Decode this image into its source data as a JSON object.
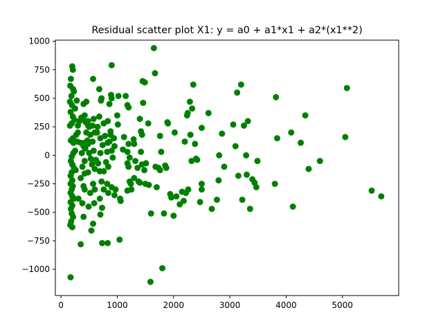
{
  "chart_data": {
    "type": "scatter",
    "title": "Residual scatter plot X1:  y = a0 + a1*x1 + a2*(x1**2)",
    "xlabel": "",
    "ylabel": "",
    "xlim": [
      -100,
      6000
    ],
    "ylim": [
      -1230,
      1010
    ],
    "xticks": [
      0,
      1000,
      2000,
      3000,
      4000,
      5000
    ],
    "yticks": [
      -1000,
      -750,
      -500,
      -250,
      0,
      250,
      500,
      750,
      1000
    ],
    "grid": false,
    "legend": "none",
    "marker_color": "#008000",
    "series": [
      {
        "points": [
          [
            200,
            780
          ],
          [
            210,
            750
          ],
          [
            175,
            670
          ],
          [
            165,
            610
          ],
          [
            215,
            580
          ],
          [
            230,
            560
          ],
          [
            185,
            520
          ],
          [
            160,
            470
          ],
          [
            195,
            440
          ],
          [
            250,
            410
          ],
          [
            280,
            480
          ],
          [
            170,
            380
          ],
          [
            210,
            340
          ],
          [
            240,
            310
          ],
          [
            190,
            280
          ],
          [
            160,
            260
          ],
          [
            300,
            260
          ],
          [
            330,
            300
          ],
          [
            360,
            330
          ],
          [
            390,
            320
          ],
          [
            300,
            200
          ],
          [
            270,
            180
          ],
          [
            210,
            150
          ],
          [
            175,
            130
          ],
          [
            220,
            110
          ],
          [
            290,
            120
          ],
          [
            350,
            110
          ],
          [
            400,
            80
          ],
          [
            250,
            40
          ],
          [
            220,
            20
          ],
          [
            190,
            -10
          ],
          [
            175,
            -50
          ],
          [
            200,
            -80
          ],
          [
            230,
            -110
          ],
          [
            260,
            -130
          ],
          [
            190,
            -150
          ],
          [
            170,
            -180
          ],
          [
            200,
            -220
          ],
          [
            170,
            -250
          ],
          [
            210,
            -270
          ],
          [
            190,
            -300
          ],
          [
            170,
            -330
          ],
          [
            200,
            -360
          ],
          [
            230,
            -380
          ],
          [
            170,
            -410
          ],
          [
            200,
            -440
          ],
          [
            175,
            -470
          ],
          [
            190,
            -510
          ],
          [
            215,
            -540
          ],
          [
            180,
            -580
          ],
          [
            165,
            -610
          ],
          [
            200,
            -630
          ],
          [
            170,
            -1070
          ],
          [
            350,
            -780
          ],
          [
            310,
            -380
          ],
          [
            380,
            -420
          ],
          [
            420,
            -300
          ],
          [
            400,
            -270
          ],
          [
            350,
            -200
          ],
          [
            420,
            -160
          ],
          [
            380,
            -100
          ],
          [
            420,
            -50
          ],
          [
            370,
            20
          ],
          [
            430,
            60
          ],
          [
            420,
            110
          ],
          [
            470,
            130
          ],
          [
            450,
            200
          ],
          [
            480,
            260
          ],
          [
            440,
            290
          ],
          [
            420,
            350
          ],
          [
            400,
            450
          ],
          [
            450,
            470
          ],
          [
            480,
            300
          ],
          [
            500,
            250
          ],
          [
            520,
            180
          ],
          [
            480,
            100
          ],
          [
            500,
            20
          ],
          [
            530,
            -30
          ],
          [
            550,
            -80
          ],
          [
            480,
            -150
          ],
          [
            520,
            -330
          ],
          [
            490,
            -450
          ],
          [
            400,
            -540
          ],
          [
            540,
            -660
          ],
          [
            570,
            -600
          ],
          [
            590,
            -420
          ],
          [
            600,
            -300
          ],
          [
            570,
            -250
          ],
          [
            600,
            -120
          ],
          [
            620,
            -40
          ],
          [
            580,
            40
          ],
          [
            560,
            120
          ],
          [
            600,
            200
          ],
          [
            560,
            260
          ],
          [
            580,
            320
          ],
          [
            570,
            670
          ],
          [
            680,
            580
          ],
          [
            720,
            500
          ],
          [
            710,
            480
          ],
          [
            680,
            340
          ],
          [
            650,
            250
          ],
          [
            640,
            200
          ],
          [
            700,
            150
          ],
          [
            740,
            90
          ],
          [
            700,
            20
          ],
          [
            660,
            -70
          ],
          [
            690,
            -140
          ],
          [
            720,
            -230
          ],
          [
            690,
            -380
          ],
          [
            730,
            -460
          ],
          [
            760,
            -300
          ],
          [
            700,
            -520
          ],
          [
            730,
            -770
          ],
          [
            830,
            -770
          ],
          [
            760,
            -140
          ],
          [
            800,
            -60
          ],
          [
            820,
            30
          ],
          [
            830,
            110
          ],
          [
            780,
            170
          ],
          [
            760,
            280
          ],
          [
            830,
            300
          ],
          [
            880,
            210
          ],
          [
            900,
            500
          ],
          [
            890,
            530
          ],
          [
            900,
            790
          ],
          [
            860,
            450
          ],
          [
            880,
            180
          ],
          [
            940,
            150
          ],
          [
            860,
            120
          ],
          [
            950,
            80
          ],
          [
            900,
            40
          ],
          [
            920,
            -20
          ],
          [
            840,
            -100
          ],
          [
            820,
            -250
          ],
          [
            840,
            -330
          ],
          [
            900,
            -280
          ],
          [
            950,
            -350
          ],
          [
            970,
            -300
          ],
          [
            1000,
            350
          ],
          [
            1010,
            270
          ],
          [
            1020,
            520
          ],
          [
            1050,
            -380
          ],
          [
            1060,
            -400
          ],
          [
            1040,
            -740
          ],
          [
            1100,
            50
          ],
          [
            1120,
            160
          ],
          [
            1150,
            520
          ],
          [
            1180,
            440
          ],
          [
            1200,
            420
          ],
          [
            1180,
            30
          ],
          [
            1200,
            100
          ],
          [
            1220,
            -20
          ],
          [
            1180,
            -70
          ],
          [
            1200,
            -100
          ],
          [
            1220,
            -230
          ],
          [
            1250,
            -300
          ],
          [
            1180,
            -310
          ],
          [
            1240,
            -250
          ],
          [
            1290,
            140
          ],
          [
            1300,
            100
          ],
          [
            1320,
            -50
          ],
          [
            1360,
            -110
          ],
          [
            1300,
            -200
          ],
          [
            1380,
            -230
          ],
          [
            1400,
            320
          ],
          [
            1420,
            210
          ],
          [
            1440,
            180
          ],
          [
            1460,
            460
          ],
          [
            1450,
            650
          ],
          [
            1490,
            640
          ],
          [
            1420,
            30
          ],
          [
            1440,
            -80
          ],
          [
            1480,
            -130
          ],
          [
            1400,
            -240
          ],
          [
            1500,
            -250
          ],
          [
            1510,
            -70
          ],
          [
            1550,
            280
          ],
          [
            1560,
            -260
          ],
          [
            1600,
            -510
          ],
          [
            1590,
            -1110
          ],
          [
            1650,
            940
          ],
          [
            1670,
            720
          ],
          [
            1680,
            -100
          ],
          [
            1700,
            -280
          ],
          [
            1730,
            -110
          ],
          [
            1760,
            170
          ],
          [
            1760,
            -130
          ],
          [
            1780,
            30
          ],
          [
            1800,
            -990
          ],
          [
            1830,
            -510
          ],
          [
            1850,
            -90
          ],
          [
            1870,
            -110
          ],
          [
            1900,
            280
          ],
          [
            1890,
            290
          ],
          [
            1940,
            -340
          ],
          [
            1960,
            -370
          ],
          [
            2000,
            -530
          ],
          [
            2020,
            200
          ],
          [
            2050,
            -360
          ],
          [
            2110,
            -430
          ],
          [
            2150,
            -320
          ],
          [
            2180,
            -400
          ],
          [
            2200,
            120
          ],
          [
            2220,
            -330
          ],
          [
            2240,
            350
          ],
          [
            2250,
            370
          ],
          [
            2260,
            -300
          ],
          [
            2290,
            470
          ],
          [
            2300,
            180
          ],
          [
            2320,
            -50
          ],
          [
            2330,
            410
          ],
          [
            2350,
            620
          ],
          [
            2380,
            100
          ],
          [
            2400,
            -30
          ],
          [
            2420,
            -40
          ],
          [
            2470,
            -410
          ],
          [
            2500,
            -250
          ],
          [
            2500,
            -300
          ],
          [
            2500,
            240
          ],
          [
            2620,
            370
          ],
          [
            2680,
            -470
          ],
          [
            2770,
            -390
          ],
          [
            2810,
            0
          ],
          [
            2800,
            -220
          ],
          [
            2860,
            190
          ],
          [
            2900,
            -100
          ],
          [
            3060,
            270
          ],
          [
            3100,
            80
          ],
          [
            3130,
            550
          ],
          [
            3150,
            -180
          ],
          [
            3200,
            620
          ],
          [
            3220,
            -390
          ],
          [
            3250,
            260
          ],
          [
            3290,
            0
          ],
          [
            3300,
            -170
          ],
          [
            3320,
            300
          ],
          [
            3360,
            -470
          ],
          [
            3400,
            -210
          ],
          [
            3440,
            -240
          ],
          [
            3470,
            -280
          ],
          [
            3490,
            -50
          ],
          [
            3800,
            -250
          ],
          [
            3820,
            510
          ],
          [
            3840,
            150
          ],
          [
            4090,
            200
          ],
          [
            4120,
            -450
          ],
          [
            4260,
            110
          ],
          [
            4340,
            350
          ],
          [
            4400,
            -120
          ],
          [
            4600,
            -50
          ],
          [
            5050,
            160
          ],
          [
            5080,
            590
          ],
          [
            5520,
            -310
          ],
          [
            5690,
            -360
          ]
        ]
      }
    ]
  }
}
